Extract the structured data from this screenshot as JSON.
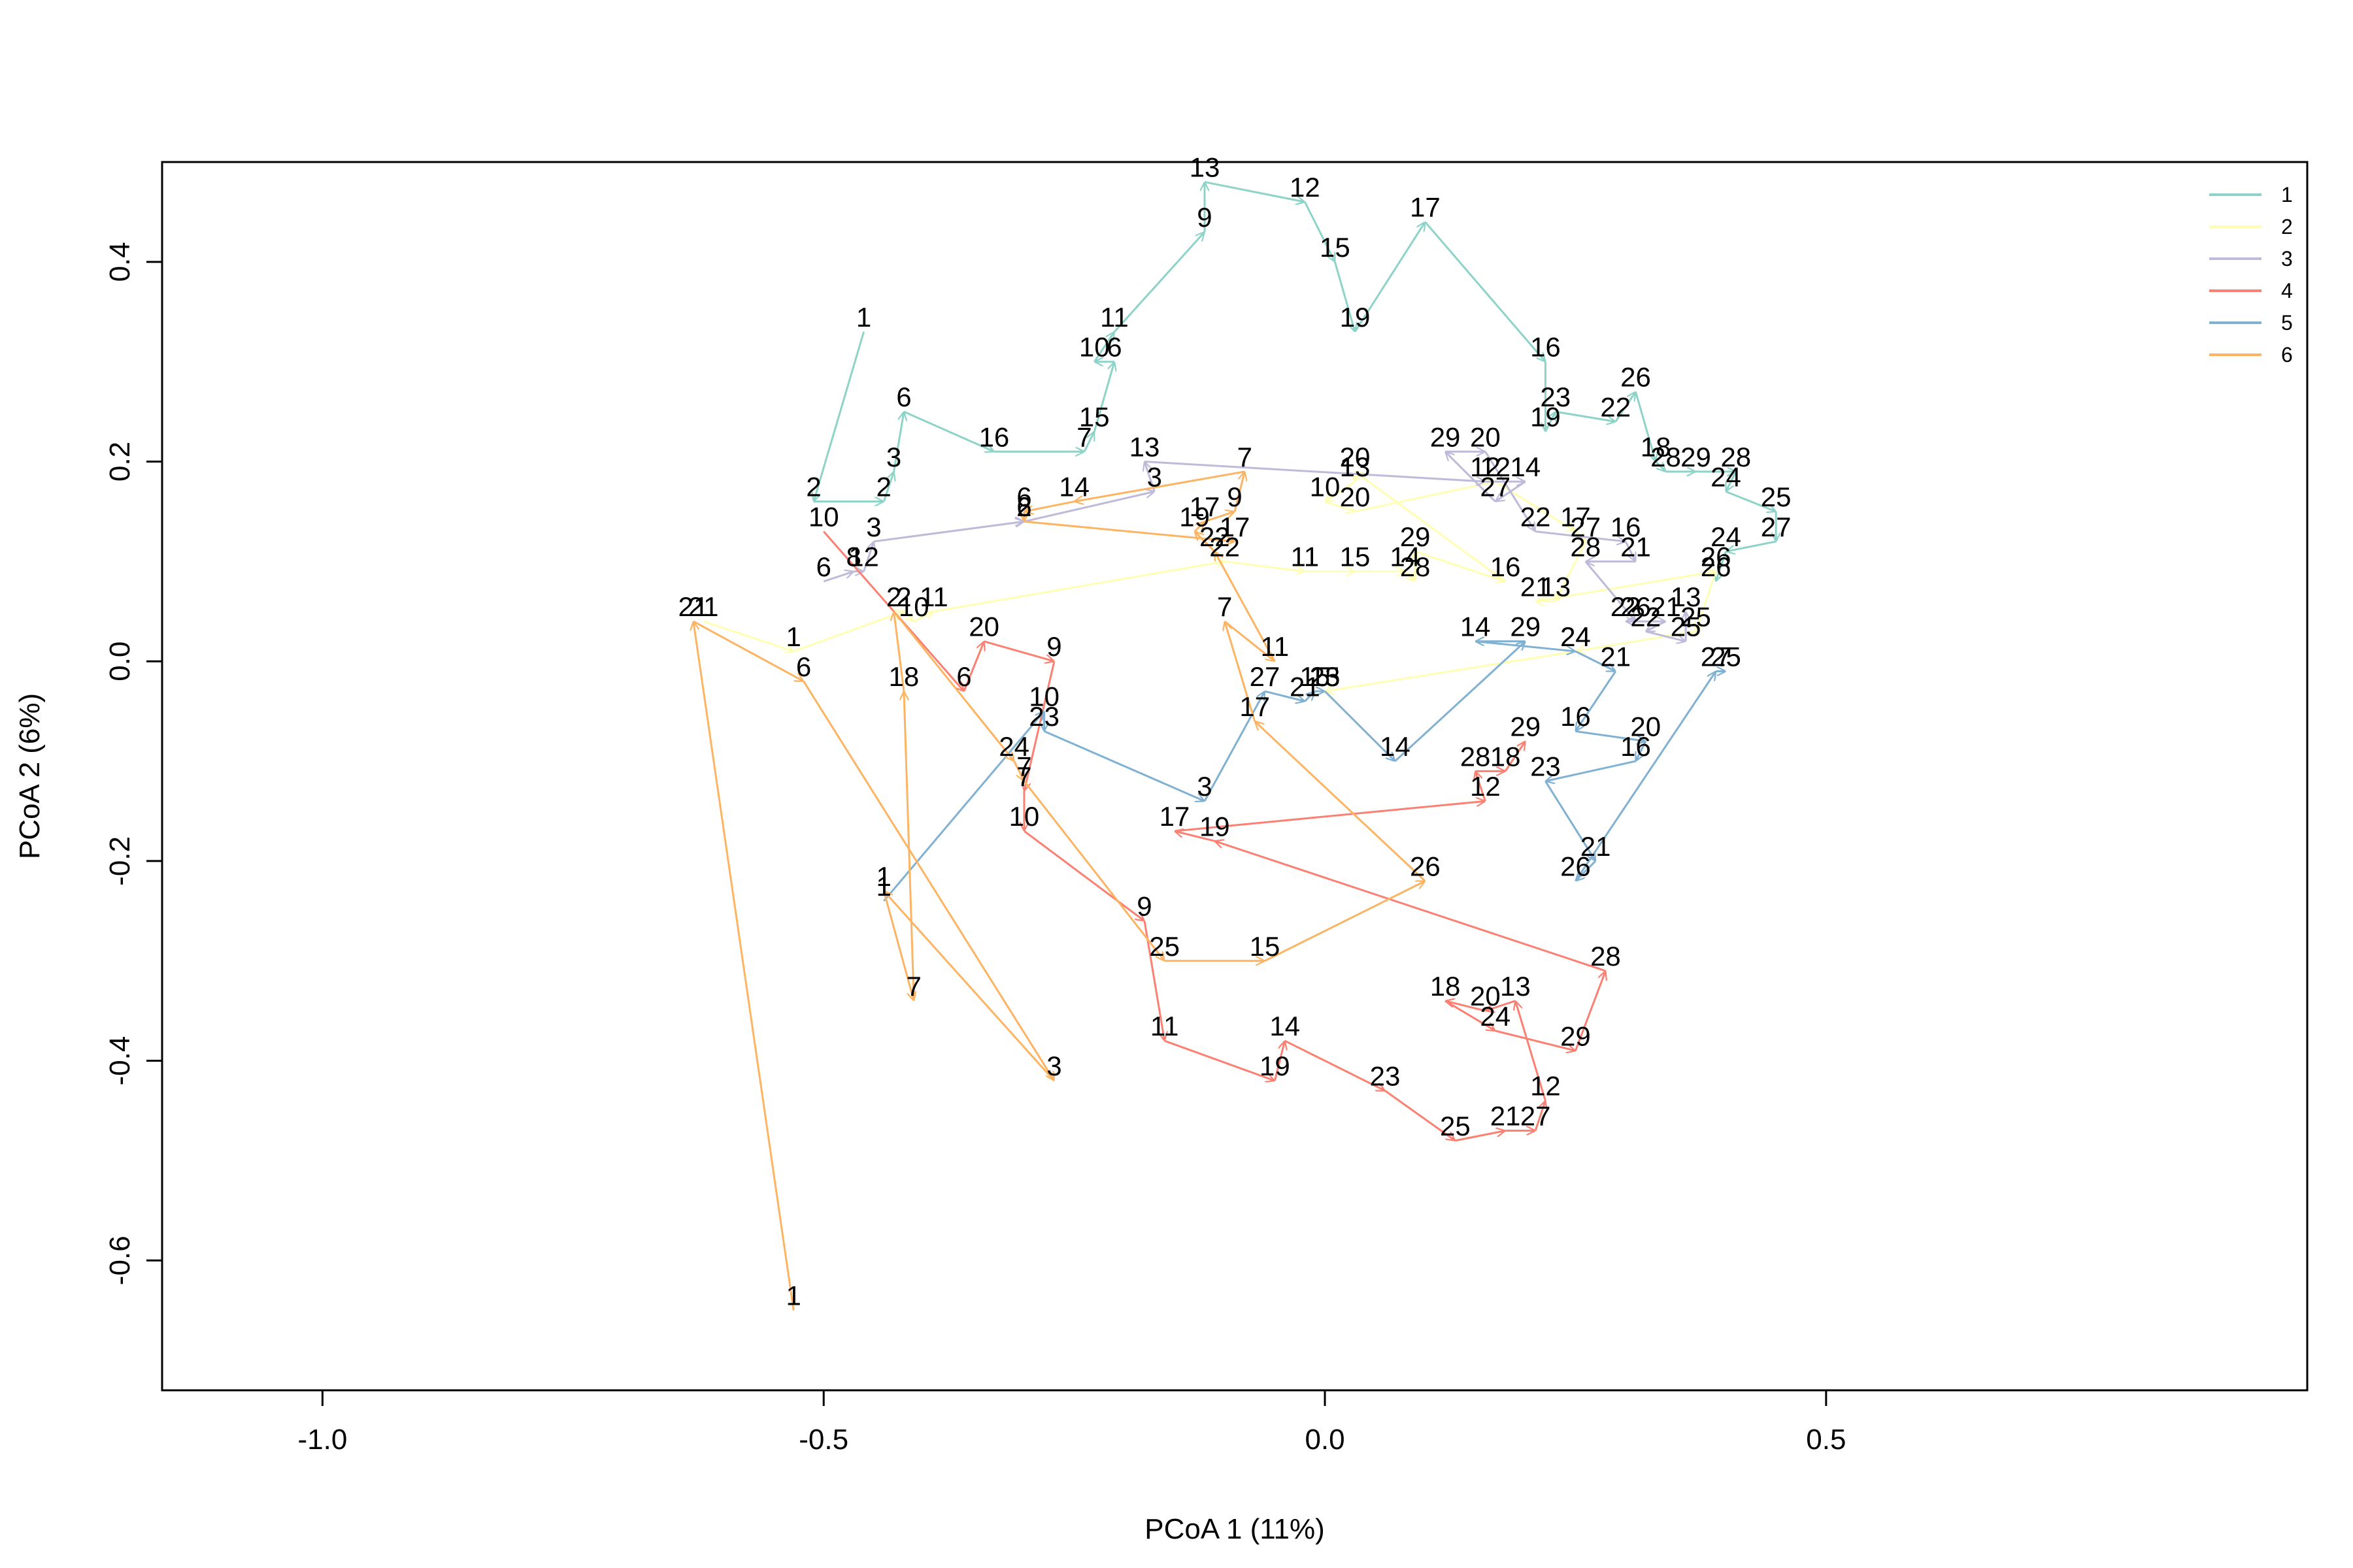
{
  "chart_data": {
    "type": "scatter",
    "title": "",
    "xlabel": "PCoA 1 (11%)",
    "ylabel": "PCoA 2 (6%)",
    "xlim": [
      -1.16,
      0.98
    ],
    "ylim": [
      -0.73,
      0.5
    ],
    "xticks": [
      -1.0,
      -0.5,
      0.0,
      0.5
    ],
    "xtick_labels": [
      "-1.0",
      "-0.5",
      "0.0",
      "0.5"
    ],
    "yticks": [
      -0.6,
      -0.4,
      -0.2,
      0.0,
      0.2,
      0.4
    ],
    "ytick_labels": [
      "-0.6",
      "-0.4",
      "-0.2",
      "0.0",
      "0.2",
      "0.4"
    ],
    "grid": false,
    "legend_position": "top-right",
    "style": "labeled trajectories connected by arrows",
    "series": [
      {
        "name": "1",
        "color": "#8DD3C7",
        "points": [
          {
            "label": "1",
            "x": -0.46,
            "y": 0.33
          },
          {
            "label": "2",
            "x": -0.51,
            "y": 0.16
          },
          {
            "label": "2",
            "x": -0.44,
            "y": 0.16
          },
          {
            "label": "3",
            "x": -0.43,
            "y": 0.19
          },
          {
            "label": "6",
            "x": -0.42,
            "y": 0.25
          },
          {
            "label": "16",
            "x": -0.33,
            "y": 0.21
          },
          {
            "label": "7",
            "x": -0.24,
            "y": 0.21
          },
          {
            "label": "15",
            "x": -0.23,
            "y": 0.23
          },
          {
            "label": "6",
            "x": -0.21,
            "y": 0.3
          },
          {
            "label": "10",
            "x": -0.23,
            "y": 0.3
          },
          {
            "label": "11",
            "x": -0.21,
            "y": 0.33
          },
          {
            "label": "9",
            "x": -0.12,
            "y": 0.43
          },
          {
            "label": "13",
            "x": -0.12,
            "y": 0.48
          },
          {
            "label": "12",
            "x": -0.02,
            "y": 0.46
          },
          {
            "label": "15",
            "x": 0.01,
            "y": 0.4
          },
          {
            "label": "19",
            "x": 0.03,
            "y": 0.33
          },
          {
            "label": "17",
            "x": 0.1,
            "y": 0.44
          },
          {
            "label": "16",
            "x": 0.22,
            "y": 0.3
          },
          {
            "label": "19",
            "x": 0.22,
            "y": 0.23
          },
          {
            "label": "23",
            "x": 0.23,
            "y": 0.25
          },
          {
            "label": "22",
            "x": 0.29,
            "y": 0.24
          },
          {
            "label": "26",
            "x": 0.31,
            "y": 0.27
          },
          {
            "label": "18",
            "x": 0.33,
            "y": 0.2
          },
          {
            "label": "28",
            "x": 0.34,
            "y": 0.19
          },
          {
            "label": "29",
            "x": 0.37,
            "y": 0.19
          },
          {
            "label": "28",
            "x": 0.41,
            "y": 0.19
          },
          {
            "label": "24",
            "x": 0.4,
            "y": 0.17
          },
          {
            "label": "25",
            "x": 0.45,
            "y": 0.15
          },
          {
            "label": "27",
            "x": 0.45,
            "y": 0.12
          },
          {
            "label": "24",
            "x": 0.4,
            "y": 0.11
          },
          {
            "label": "26",
            "x": 0.39,
            "y": 0.08
          }
        ]
      },
      {
        "name": "2",
        "color": "#FFFFB3",
        "points": [
          {
            "label": "21",
            "x": -0.62,
            "y": 0.04
          },
          {
            "label": "1",
            "x": -0.53,
            "y": 0.01
          },
          {
            "label": "2",
            "x": -0.42,
            "y": 0.05
          },
          {
            "label": "10",
            "x": -0.41,
            "y": 0.04
          },
          {
            "label": "11",
            "x": -0.39,
            "y": 0.05
          },
          {
            "label": "22",
            "x": -0.1,
            "y": 0.1
          },
          {
            "label": "11",
            "x": -0.02,
            "y": 0.09
          },
          {
            "label": "15",
            "x": 0.03,
            "y": 0.09
          },
          {
            "label": "14",
            "x": 0.08,
            "y": 0.09
          },
          {
            "label": "28",
            "x": 0.09,
            "y": 0.08
          },
          {
            "label": "29",
            "x": 0.09,
            "y": 0.11
          },
          {
            "label": "16",
            "x": 0.18,
            "y": 0.08
          },
          {
            "label": "20",
            "x": 0.03,
            "y": 0.19
          },
          {
            "label": "13",
            "x": 0.03,
            "y": 0.18
          },
          {
            "label": "10",
            "x": 0.0,
            "y": 0.16
          },
          {
            "label": "20",
            "x": 0.03,
            "y": 0.15
          },
          {
            "label": "12",
            "x": 0.17,
            "y": 0.18
          },
          {
            "label": "17",
            "x": 0.25,
            "y": 0.13
          },
          {
            "label": "27",
            "x": 0.26,
            "y": 0.12
          },
          {
            "label": "13",
            "x": 0.23,
            "y": 0.06
          },
          {
            "label": "21",
            "x": 0.21,
            "y": 0.06
          },
          {
            "label": "26",
            "x": 0.39,
            "y": 0.09
          },
          {
            "label": "25",
            "x": 0.37,
            "y": 0.03
          },
          {
            "label": "24",
            "x": 0.25,
            "y": 0.01
          },
          {
            "label": "15",
            "x": 0.0,
            "y": -0.03
          }
        ]
      },
      {
        "name": "3",
        "color": "#BEBADA",
        "points": [
          {
            "label": "6",
            "x": -0.5,
            "y": 0.08
          },
          {
            "label": "8",
            "x": -0.47,
            "y": 0.09
          },
          {
            "label": "12",
            "x": -0.46,
            "y": 0.09
          },
          {
            "label": "3",
            "x": -0.45,
            "y": 0.12
          },
          {
            "label": "2",
            "x": -0.3,
            "y": 0.14
          },
          {
            "label": "6",
            "x": -0.3,
            "y": 0.14
          },
          {
            "label": "3",
            "x": -0.17,
            "y": 0.17
          },
          {
            "label": "13",
            "x": -0.18,
            "y": 0.2
          },
          {
            "label": "12",
            "x": 0.16,
            "y": 0.18
          },
          {
            "label": "14",
            "x": 0.2,
            "y": 0.18
          },
          {
            "label": "27",
            "x": 0.17,
            "y": 0.16
          },
          {
            "label": "29",
            "x": 0.12,
            "y": 0.21
          },
          {
            "label": "20",
            "x": 0.16,
            "y": 0.21
          },
          {
            "label": "22",
            "x": 0.21,
            "y": 0.13
          },
          {
            "label": "16",
            "x": 0.3,
            "y": 0.12
          },
          {
            "label": "21",
            "x": 0.31,
            "y": 0.1
          },
          {
            "label": "28",
            "x": 0.26,
            "y": 0.1
          },
          {
            "label": "26",
            "x": 0.31,
            "y": 0.04
          },
          {
            "label": "22",
            "x": 0.3,
            "y": 0.04
          },
          {
            "label": "21",
            "x": 0.34,
            "y": 0.04
          },
          {
            "label": "22",
            "x": 0.32,
            "y": 0.03
          },
          {
            "label": "25",
            "x": 0.36,
            "y": 0.02
          },
          {
            "label": "13",
            "x": 0.36,
            "y": 0.05
          }
        ]
      },
      {
        "name": "4",
        "color": "#FB8072",
        "points": [
          {
            "label": "10",
            "x": -0.5,
            "y": 0.13
          },
          {
            "label": "6",
            "x": -0.36,
            "y": -0.03
          },
          {
            "label": "20",
            "x": -0.34,
            "y": 0.02
          },
          {
            "label": "9",
            "x": -0.27,
            "y": 0.0
          },
          {
            "label": "7",
            "x": -0.3,
            "y": -0.13
          },
          {
            "label": "10",
            "x": -0.3,
            "y": -0.17
          },
          {
            "label": "9",
            "x": -0.18,
            "y": -0.26
          },
          {
            "label": "11",
            "x": -0.16,
            "y": -0.38
          },
          {
            "label": "19",
            "x": -0.05,
            "y": -0.42
          },
          {
            "label": "14",
            "x": -0.04,
            "y": -0.38
          },
          {
            "label": "23",
            "x": 0.06,
            "y": -0.43
          },
          {
            "label": "25",
            "x": 0.13,
            "y": -0.48
          },
          {
            "label": "21",
            "x": 0.18,
            "y": -0.47
          },
          {
            "label": "27",
            "x": 0.21,
            "y": -0.47
          },
          {
            "label": "12",
            "x": 0.22,
            "y": -0.44
          },
          {
            "label": "13",
            "x": 0.19,
            "y": -0.34
          },
          {
            "label": "20",
            "x": 0.16,
            "y": -0.35
          },
          {
            "label": "18",
            "x": 0.12,
            "y": -0.34
          },
          {
            "label": "24",
            "x": 0.17,
            "y": -0.37
          },
          {
            "label": "29",
            "x": 0.25,
            "y": -0.39
          },
          {
            "label": "28",
            "x": 0.28,
            "y": -0.31
          },
          {
            "label": "19",
            "x": -0.11,
            "y": -0.18
          },
          {
            "label": "17",
            "x": -0.15,
            "y": -0.17
          },
          {
            "label": "12",
            "x": 0.16,
            "y": -0.14
          },
          {
            "label": "28",
            "x": 0.15,
            "y": -0.11
          },
          {
            "label": "18",
            "x": 0.18,
            "y": -0.11
          },
          {
            "label": "29",
            "x": 0.2,
            "y": -0.08
          }
        ]
      },
      {
        "name": "5",
        "color": "#80B1D3",
        "points": [
          {
            "label": "1",
            "x": -0.44,
            "y": -0.24
          },
          {
            "label": "10",
            "x": -0.28,
            "y": -0.05
          },
          {
            "label": "23",
            "x": -0.28,
            "y": -0.07
          },
          {
            "label": "3",
            "x": -0.12,
            "y": -0.14
          },
          {
            "label": "27",
            "x": -0.06,
            "y": -0.03
          },
          {
            "label": "21",
            "x": -0.02,
            "y": -0.04
          },
          {
            "label": "15",
            "x": -0.01,
            "y": -0.03
          },
          {
            "label": "23",
            "x": 0.0,
            "y": -0.03
          },
          {
            "label": "14",
            "x": 0.07,
            "y": -0.1
          },
          {
            "label": "29",
            "x": 0.2,
            "y": 0.02
          },
          {
            "label": "14",
            "x": 0.15,
            "y": 0.02
          },
          {
            "label": "24",
            "x": 0.25,
            "y": 0.01
          },
          {
            "label": "21",
            "x": 0.29,
            "y": -0.01
          },
          {
            "label": "16",
            "x": 0.25,
            "y": -0.07
          },
          {
            "label": "20",
            "x": 0.32,
            "y": -0.08
          },
          {
            "label": "16",
            "x": 0.31,
            "y": -0.1
          },
          {
            "label": "23",
            "x": 0.22,
            "y": -0.12
          },
          {
            "label": "21",
            "x": 0.27,
            "y": -0.2
          },
          {
            "label": "26",
            "x": 0.25,
            "y": -0.22
          },
          {
            "label": "27",
            "x": 0.39,
            "y": -0.01
          },
          {
            "label": "25",
            "x": 0.4,
            "y": -0.01
          }
        ]
      },
      {
        "name": "6",
        "color": "#FDB462",
        "points": [
          {
            "label": "1",
            "x": -0.53,
            "y": -0.65
          },
          {
            "label": "21",
            "x": -0.63,
            "y": 0.04
          },
          {
            "label": "6",
            "x": -0.52,
            "y": -0.02
          },
          {
            "label": "3",
            "x": -0.27,
            "y": -0.42
          },
          {
            "label": "1",
            "x": -0.44,
            "y": -0.23
          },
          {
            "label": "7",
            "x": -0.41,
            "y": -0.34
          },
          {
            "label": "18",
            "x": -0.42,
            "y": -0.03
          },
          {
            "label": "2",
            "x": -0.43,
            "y": 0.05
          },
          {
            "label": "24",
            "x": -0.31,
            "y": -0.1
          },
          {
            "label": "7",
            "x": -0.3,
            "y": -0.12
          },
          {
            "label": "25",
            "x": -0.16,
            "y": -0.3
          },
          {
            "label": "15",
            "x": -0.06,
            "y": -0.3
          },
          {
            "label": "26",
            "x": 0.1,
            "y": -0.22
          },
          {
            "label": "17",
            "x": -0.07,
            "y": -0.06
          },
          {
            "label": "7",
            "x": -0.1,
            "y": 0.04
          },
          {
            "label": "11",
            "x": -0.05,
            "y": 0.0
          },
          {
            "label": "22",
            "x": -0.11,
            "y": 0.11
          },
          {
            "label": "19",
            "x": -0.13,
            "y": 0.13
          },
          {
            "label": "17",
            "x": -0.12,
            "y": 0.14
          },
          {
            "label": "9",
            "x": -0.09,
            "y": 0.15
          },
          {
            "label": "7",
            "x": -0.08,
            "y": 0.19
          },
          {
            "label": "14",
            "x": -0.25,
            "y": 0.16
          },
          {
            "label": "6",
            "x": -0.3,
            "y": 0.15
          },
          {
            "label": "2",
            "x": -0.3,
            "y": 0.14
          },
          {
            "label": "17",
            "x": -0.09,
            "y": 0.12
          }
        ]
      }
    ]
  }
}
